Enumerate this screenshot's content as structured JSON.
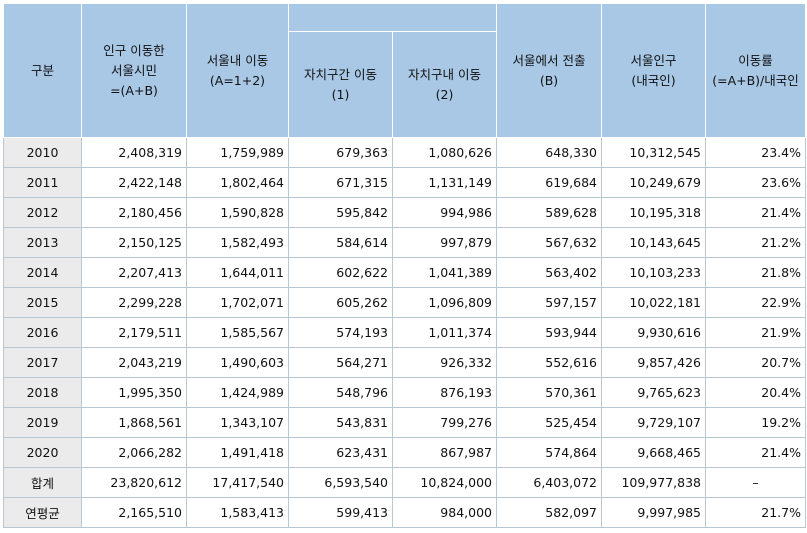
{
  "headers": {
    "gubun": "구분",
    "total_line1": "인구 이동한",
    "total_line2": "서울시민",
    "total_line3": "=(A+B)",
    "within_line1": "서울내 이동",
    "within_line2": "(A=1+2)",
    "between_line1": "자치구간 이동",
    "between_line2": "(1)",
    "inside_line1": "자치구내 이동",
    "inside_line2": "(2)",
    "out_line1": "서울에서 전출",
    "out_line2": "(B)",
    "pop_line1": "서울인구",
    "pop_line2": "(내국인)",
    "rate_line1": "이동률",
    "rate_line2": "(=A+B)/내국인"
  },
  "rows": [
    [
      "2010",
      "2,408,319",
      "1,759,989",
      "679,363",
      "1,080,626",
      "648,330",
      "10,312,545",
      "23.4%"
    ],
    [
      "2011",
      "2,422,148",
      "1,802,464",
      "671,315",
      "1,131,149",
      "619,684",
      "10,249,679",
      "23.6%"
    ],
    [
      "2012",
      "2,180,456",
      "1,590,828",
      "595,842",
      "994,986",
      "589,628",
      "10,195,318",
      "21.4%"
    ],
    [
      "2013",
      "2,150,125",
      "1,582,493",
      "584,614",
      "997,879",
      "567,632",
      "10,143,645",
      "21.2%"
    ],
    [
      "2014",
      "2,207,413",
      "1,644,011",
      "602,622",
      "1,041,389",
      "563,402",
      "10,103,233",
      "21.8%"
    ],
    [
      "2015",
      "2,299,228",
      "1,702,071",
      "605,262",
      "1,096,809",
      "597,157",
      "10,022,181",
      "22.9%"
    ],
    [
      "2016",
      "2,179,511",
      "1,585,567",
      "574,193",
      "1,011,374",
      "593,944",
      "9,930,616",
      "21.9%"
    ],
    [
      "2017",
      "2,043,219",
      "1,490,603",
      "564,271",
      "926,332",
      "552,616",
      "9,857,426",
      "20.7%"
    ],
    [
      "2018",
      "1,995,350",
      "1,424,989",
      "548,796",
      "876,193",
      "570,361",
      "9,765,623",
      "20.4%"
    ],
    [
      "2019",
      "1,868,561",
      "1,343,107",
      "543,831",
      "799,276",
      "525,454",
      "9,729,107",
      "19.2%"
    ],
    [
      "2020",
      "2,066,282",
      "1,491,418",
      "623,431",
      "867,987",
      "574,864",
      "9,668,465",
      "21.4%"
    ],
    [
      "합계",
      "23,820,612",
      "17,417,540",
      "6,593,540",
      "10,824,000",
      "6,403,072",
      "109,977,838",
      "–"
    ],
    [
      "연평균",
      "2,165,510",
      "1,583,413",
      "599,413",
      "984,000",
      "582,097",
      "9,997,985",
      "21.7%"
    ]
  ]
}
